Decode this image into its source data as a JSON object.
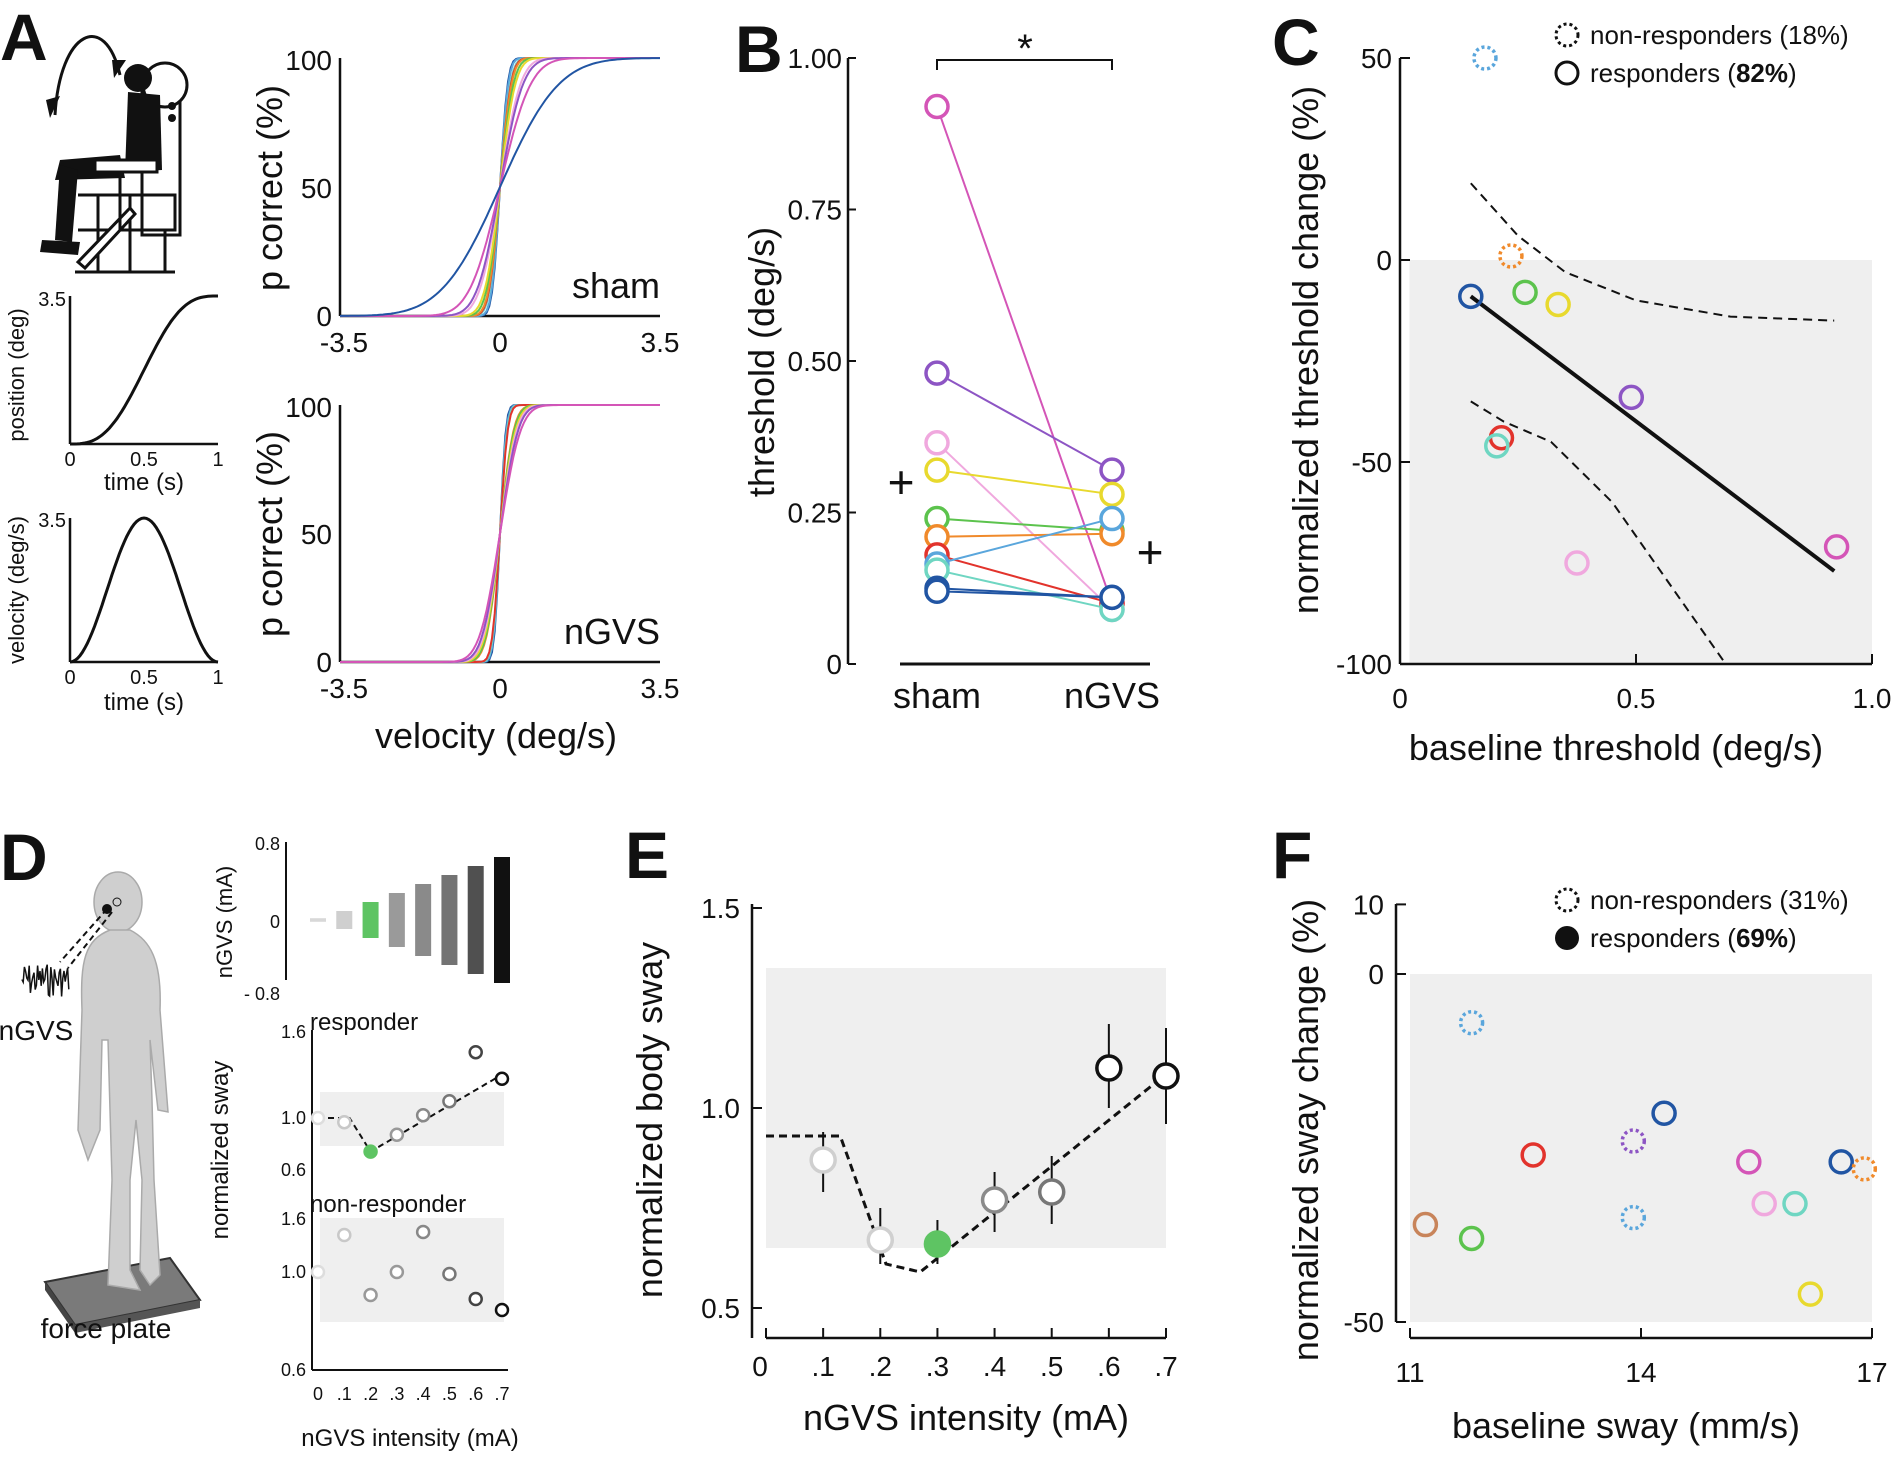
{
  "panels": {
    "A": {
      "letter": "A",
      "position_plot": {
        "ylabel": "position (deg)",
        "xlabel": "time (s)",
        "ytick_top": "3.5",
        "yticks": [
          "0",
          "0.5",
          "1"
        ]
      },
      "velocity_plot": {
        "ylabel": "velocity (deg/s)",
        "xlabel": "time (s)",
        "ytick_top": "3.5",
        "yticks": [
          "0",
          "0.5",
          "1"
        ]
      },
      "psych_ylabel": "p correct (%)",
      "psych_xlabel": "velocity (deg/s)",
      "sham_label": "sham",
      "ngvs_label": "nGVS",
      "yticks": [
        "0",
        "50",
        "100"
      ],
      "xticks": [
        "-3.5",
        "0",
        "3.5"
      ]
    },
    "B": {
      "letter": "B",
      "ylabel": "threshold (deg/s)",
      "significance": "*",
      "mean_marker": "+"
    },
    "C": {
      "letter": "C",
      "legend_nonresp_prefix": "non-responders (",
      "legend_nonresp_pct": "18%",
      "legend_resp_prefix": "responders (",
      "legend_resp_pct": "82%",
      "legend_suffix": ")"
    },
    "D": {
      "letter": "D",
      "ngvs_label": "nGVS",
      "force_plate_label": "force plate",
      "signal_ylabel": "nGVS (mA)",
      "signal_yticks": [
        "0.8",
        "0",
        "- 0.8"
      ],
      "responder_label": "responder",
      "nonresponder_label": "non-responder",
      "sway_ylabel": "normalized sway",
      "sway_yticks": [
        "1.6",
        "1.0",
        "0.6"
      ],
      "xticks": [
        "0",
        ".1",
        ".2",
        ".3",
        ".4",
        ".5",
        ".6",
        ".7"
      ],
      "xlabel": "nGVS intensity (mA)"
    },
    "E": {
      "letter": "E"
    },
    "F": {
      "letter": "F",
      "legend_nonresp_prefix": "non-responders (",
      "legend_nonresp_pct": "31%",
      "legend_resp_prefix": "responders (",
      "legend_resp_pct": "69%",
      "legend_suffix": ")"
    }
  },
  "chart_data": [
    {
      "id": "A-psychometric",
      "type": "line",
      "title": "",
      "xlabel": "velocity (deg/s)",
      "ylabel": "p correct (%)",
      "xlim": [
        -3.5,
        3.5
      ],
      "ylim": [
        0,
        100
      ],
      "sham_thresholds": [
        0.12,
        0.13,
        0.16,
        0.17,
        0.18,
        0.21,
        0.24,
        0.32,
        0.36,
        0.48,
        0.92
      ],
      "ngvs_thresholds": [
        0.09,
        0.1,
        0.11,
        0.12,
        0.21,
        0.22,
        0.24,
        0.26,
        0.28,
        0.32
      ],
      "colors": [
        "#2155a3",
        "#5aa6dc",
        "#6fd6c2",
        "#e2332c",
        "#f08a2b",
        "#5cc34d",
        "#e8d92e",
        "#f0a8de",
        "#8d55c4",
        "#d455b7"
      ]
    },
    {
      "id": "B",
      "type": "line",
      "ylabel": "threshold (deg/s)",
      "categories": [
        "sham",
        "nGVS"
      ],
      "ylim": [
        0,
        1.0
      ],
      "yticks": [
        "0",
        "0.25",
        "0.50",
        "0.75",
        "1.00"
      ],
      "mean_sham": 0.3,
      "mean_ngvs": 0.185,
      "pairs": [
        {
          "sham": 0.92,
          "ngvs": 0.1,
          "color": "#d455b7"
        },
        {
          "sham": 0.48,
          "ngvs": 0.32,
          "color": "#8d55c4"
        },
        {
          "sham": 0.365,
          "ngvs": 0.09,
          "color": "#f0a8de"
        },
        {
          "sham": 0.32,
          "ngvs": 0.28,
          "color": "#e8d92e"
        },
        {
          "sham": 0.24,
          "ngvs": 0.22,
          "color": "#5cc34d"
        },
        {
          "sham": 0.21,
          "ngvs": 0.215,
          "color": "#f08a2b"
        },
        {
          "sham": 0.18,
          "ngvs": 0.1,
          "color": "#e2332c"
        },
        {
          "sham": 0.165,
          "ngvs": 0.24,
          "color": "#5aa6dc"
        },
        {
          "sham": 0.155,
          "ngvs": 0.09,
          "color": "#6fd6c2"
        },
        {
          "sham": 0.125,
          "ngvs": 0.11,
          "color": "#2155a3"
        },
        {
          "sham": 0.12,
          "ngvs": 0.11,
          "color": "#2155a3"
        }
      ]
    },
    {
      "id": "C",
      "type": "scatter",
      "xlabel": "baseline threshold (deg/s)",
      "ylabel": "normalized threshold change (%)",
      "xlim": [
        0,
        1.0
      ],
      "ylim": [
        -100,
        50
      ],
      "xticks": [
        "0",
        "0.5",
        "1.0"
      ],
      "yticks": [
        "50",
        "0",
        "-50",
        "-100"
      ],
      "shaded_region": {
        "x": [
          0.02,
          1.0
        ],
        "y": [
          -100,
          0
        ]
      },
      "regression_line": [
        [
          0.15,
          -9
        ],
        [
          0.92,
          -77
        ]
      ],
      "ci_upper": [
        [
          0.15,
          19
        ],
        [
          0.25,
          6
        ],
        [
          0.35,
          -3
        ],
        [
          0.5,
          -10
        ],
        [
          0.7,
          -14
        ],
        [
          0.92,
          -15
        ]
      ],
      "ci_lower": [
        [
          0.15,
          -35
        ],
        [
          0.22,
          -40
        ],
        [
          0.32,
          -45
        ],
        [
          0.45,
          -60
        ],
        [
          0.6,
          -85
        ],
        [
          0.69,
          -100
        ]
      ],
      "points": [
        {
          "x": 0.18,
          "y": 50,
          "color": "#5aa6dc",
          "responder": false
        },
        {
          "x": 0.235,
          "y": 1,
          "color": "#f08a2b",
          "responder": false
        },
        {
          "x": 0.15,
          "y": -9,
          "color": "#2155a3",
          "responder": true
        },
        {
          "x": 0.265,
          "y": -8,
          "color": "#5cc34d",
          "responder": true
        },
        {
          "x": 0.335,
          "y": -11,
          "color": "#e8d92e",
          "responder": true
        },
        {
          "x": 0.49,
          "y": -34,
          "color": "#8d55c4",
          "responder": true
        },
        {
          "x": 0.215,
          "y": -44,
          "color": "#e2332c",
          "responder": true
        },
        {
          "x": 0.205,
          "y": -46,
          "color": "#6fd6c2",
          "responder": true
        },
        {
          "x": 0.375,
          "y": -75,
          "color": "#f0a8de",
          "responder": true
        },
        {
          "x": 0.925,
          "y": -71,
          "color": "#d455b7",
          "responder": true
        }
      ]
    },
    {
      "id": "D-responder",
      "type": "scatter",
      "xlabel": "nGVS intensity (mA)",
      "ylabel": "normalized sway",
      "x": [
        0,
        0.1,
        0.2,
        0.3,
        0.4,
        0.5,
        0.6,
        0.7
      ],
      "responder": [
        1.0,
        0.97,
        0.76,
        0.88,
        1.02,
        1.12,
        1.47,
        1.28
      ],
      "nonresponder": [
        1.0,
        1.37,
        0.77,
        1.0,
        1.4,
        0.98,
        0.73,
        0.62
      ],
      "signal_amplitudes": [
        0.02,
        0.1,
        0.2,
        0.3,
        0.4,
        0.5,
        0.6,
        0.7
      ]
    },
    {
      "id": "E",
      "type": "scatter",
      "xlabel": "nGVS intensity (mA)",
      "ylabel": "normalized body sway",
      "xlim": [
        0,
        0.7
      ],
      "ylim": [
        0.5,
        1.5
      ],
      "xticks": [
        "0",
        ".1",
        ".2",
        ".3",
        ".4",
        ".5",
        ".6",
        ".7"
      ],
      "yticks": [
        "0.5",
        "1.0",
        "1.5"
      ],
      "shaded_band": [
        0.65,
        1.35
      ],
      "x": [
        0.1,
        0.2,
        0.3,
        0.4,
        0.5,
        0.6,
        0.7
      ],
      "y": [
        0.87,
        0.67,
        0.66,
        0.77,
        0.79,
        1.1,
        1.08
      ],
      "err_low": [
        0.79,
        0.61,
        0.61,
        0.69,
        0.71,
        1.0,
        0.96
      ],
      "err_high": [
        0.94,
        0.75,
        0.72,
        0.84,
        0.88,
        1.21,
        1.2
      ]
    },
    {
      "id": "F",
      "type": "scatter",
      "xlabel": "baseline sway (mm/s)",
      "ylabel": "normalized sway change (%)",
      "xlim": [
        11,
        17
      ],
      "ylim": [
        -50,
        10
      ],
      "xticks": [
        "11",
        "14",
        "17"
      ],
      "yticks": [
        "10",
        "0",
        "-50"
      ],
      "points": [
        {
          "x": 11.8,
          "y": -7,
          "color": "#5aa6dc",
          "responder": false
        },
        {
          "x": 14.3,
          "y": -20,
          "color": "#2155a3",
          "responder": true
        },
        {
          "x": 13.9,
          "y": -24,
          "color": "#8d55c4",
          "responder": false
        },
        {
          "x": 12.6,
          "y": -26,
          "color": "#e2332c",
          "responder": true
        },
        {
          "x": 15.4,
          "y": -27,
          "color": "#d455b7",
          "responder": true
        },
        {
          "x": 16.6,
          "y": -27,
          "color": "#2155a3",
          "responder": true
        },
        {
          "x": 16.9,
          "y": -28,
          "color": "#f08a2b",
          "responder": false
        },
        {
          "x": 15.6,
          "y": -33,
          "color": "#f0a8de",
          "responder": true
        },
        {
          "x": 16.0,
          "y": -33,
          "color": "#6fd6c2",
          "responder": true
        },
        {
          "x": 13.9,
          "y": -35,
          "color": "#5aa6dc",
          "responder": false
        },
        {
          "x": 11.2,
          "y": -36,
          "color": "#c8845a",
          "responder": true
        },
        {
          "x": 11.8,
          "y": -38,
          "color": "#5cc34d",
          "responder": true
        },
        {
          "x": 16.2,
          "y": -46,
          "color": "#e8d92e",
          "responder": true
        }
      ]
    }
  ]
}
